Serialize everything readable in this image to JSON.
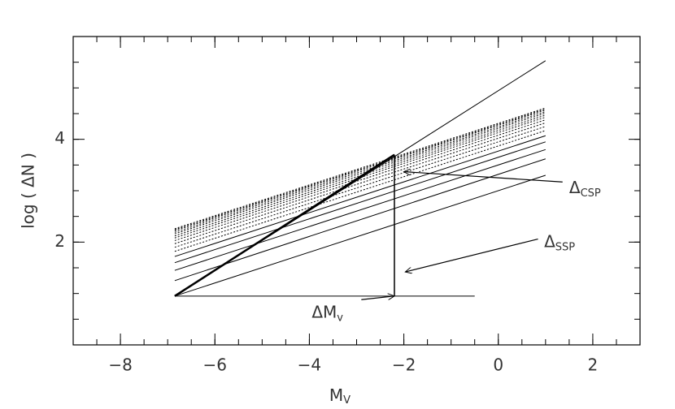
{
  "chart_data": {
    "type": "line",
    "x_label": "M",
    "x_label_sub": "V",
    "y_label": "log ( ΔN )",
    "xlim": [
      -9,
      3
    ],
    "ylim": [
      0,
      6
    ],
    "xticks": [
      -8,
      -6,
      -4,
      -2,
      0,
      2
    ],
    "yticks": [
      2,
      4
    ],
    "xminor_step": 0.5,
    "yminor_step": 0.5,
    "color": "#000000",
    "series": [
      {
        "x": [
          -6.85,
          1
        ],
        "values": [
          0.95,
          5.53
        ],
        "style": "solid",
        "width": 1
      },
      {
        "x": [
          -6.85,
          -2.2
        ],
        "values": [
          0.95,
          3.7
        ],
        "style": "solid",
        "width": 2.5
      },
      {
        "x": [
          -6.85,
          -0.5
        ],
        "values": [
          0.95,
          0.95
        ],
        "style": "solid",
        "width": 1
      },
      {
        "x": [
          -2.2,
          -2.2
        ],
        "values": [
          0.95,
          3.7
        ],
        "style": "solid",
        "width": 1.5
      },
      {
        "x": [
          -6.85,
          1
        ],
        "values": [
          0.95,
          3.3
        ],
        "style": "solid",
        "width": 1
      },
      {
        "x": [
          -6.85,
          1
        ],
        "values": [
          1.25,
          3.62
        ],
        "style": "solid",
        "width": 1
      },
      {
        "x": [
          -6.85,
          1
        ],
        "values": [
          1.45,
          3.8
        ],
        "style": "solid",
        "width": 1
      },
      {
        "x": [
          -6.85,
          1
        ],
        "values": [
          1.6,
          3.95
        ],
        "style": "solid",
        "width": 1
      },
      {
        "x": [
          -6.85,
          1
        ],
        "values": [
          1.72,
          4.07
        ],
        "style": "solid",
        "width": 1
      },
      {
        "x": [
          -6.85,
          1
        ],
        "values": [
          1.82,
          4.17
        ],
        "style": "dotted",
        "width": 1
      },
      {
        "x": [
          -6.85,
          1
        ],
        "values": [
          1.9,
          4.25
        ],
        "style": "dotted",
        "width": 1
      },
      {
        "x": [
          -6.85,
          1
        ],
        "values": [
          1.97,
          4.32
        ],
        "style": "dotted",
        "width": 1
      },
      {
        "x": [
          -6.85,
          1
        ],
        "values": [
          2.03,
          4.38
        ],
        "style": "dotted",
        "width": 1
      },
      {
        "x": [
          -6.85,
          1
        ],
        "values": [
          2.08,
          4.43
        ],
        "style": "dotted",
        "width": 1
      },
      {
        "x": [
          -6.85,
          1
        ],
        "values": [
          2.12,
          4.47
        ],
        "style": "dotted",
        "width": 1
      },
      {
        "x": [
          -6.85,
          1
        ],
        "values": [
          2.16,
          4.51
        ],
        "style": "dotted",
        "width": 1
      },
      {
        "x": [
          -6.85,
          1
        ],
        "values": [
          2.19,
          4.54
        ],
        "style": "dotted",
        "width": 1
      },
      {
        "x": [
          -6.85,
          1
        ],
        "values": [
          2.22,
          4.57
        ],
        "style": "dotted",
        "width": 1
      },
      {
        "x": [
          -6.85,
          1
        ],
        "values": [
          2.24,
          4.59
        ],
        "style": "dotted",
        "width": 1
      },
      {
        "x": [
          -6.85,
          1
        ],
        "values": [
          2.26,
          4.61
        ],
        "style": "dotted",
        "width": 1
      }
    ],
    "annotations": [
      {
        "text": "Δ",
        "sub": "CSP",
        "x": 1.5,
        "y": 3.05,
        "arrow_from": [
          1.36,
          3.17
        ],
        "arrow_to": [
          -2.0,
          3.37
        ]
      },
      {
        "text": "Δ",
        "sub": "SSP",
        "x": 0.97,
        "y": 2.0,
        "arrow_from": [
          0.84,
          2.06
        ],
        "arrow_to": [
          -1.97,
          1.42
        ]
      },
      {
        "text": "ΔM",
        "sub": "v",
        "x": -3.95,
        "y": 0.62,
        "arrow_from": [
          -2.9,
          0.88
        ],
        "arrow_to": [
          -2.2,
          0.95
        ]
      }
    ]
  }
}
